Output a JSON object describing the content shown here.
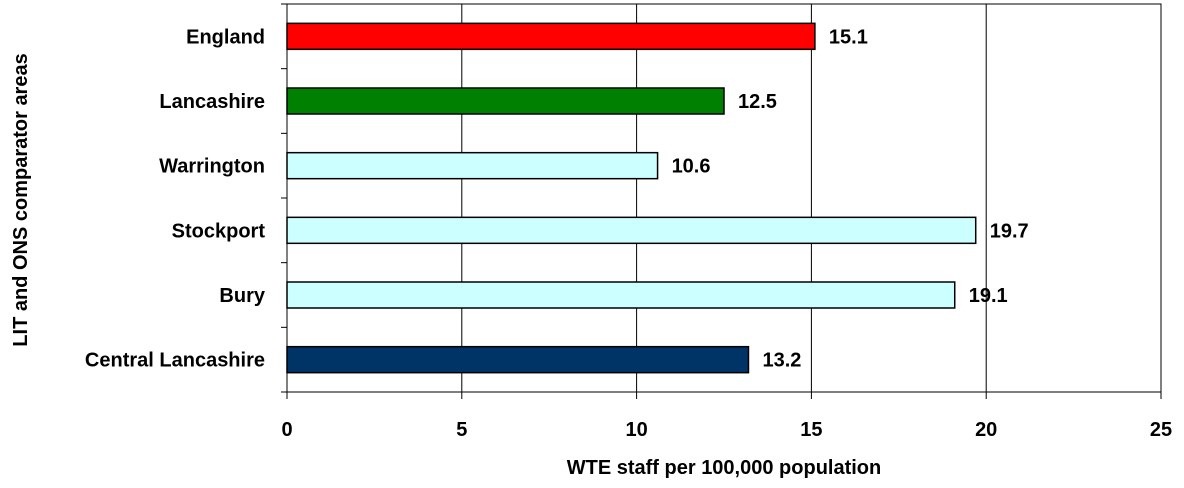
{
  "chart_data": {
    "type": "bar",
    "orientation": "horizontal",
    "categories": [
      "England",
      "Lancashire",
      "Warrington",
      "Stockport",
      "Bury",
      "Central Lancashire"
    ],
    "values": [
      15.1,
      12.5,
      10.6,
      19.7,
      19.1,
      13.2
    ],
    "data_labels": [
      "15.1",
      "12.5",
      "10.6",
      "19.7",
      "19.1",
      "13.2"
    ],
    "bar_colors": [
      "#ff0000",
      "#008000",
      "#ccffff",
      "#ccffff",
      "#ccffff",
      "#003366"
    ],
    "title": "",
    "xlabel": "WTE staff per 100,000 population",
    "ylabel": "LIT and ONS comparator areas",
    "xlim": [
      0,
      25
    ],
    "x_ticks": [
      0,
      5,
      10,
      15,
      20,
      25
    ],
    "x_tick_labels": [
      "0",
      "5",
      "10",
      "15",
      "20",
      "25"
    ],
    "grid": "vertical major gridlines",
    "legend": "none"
  }
}
